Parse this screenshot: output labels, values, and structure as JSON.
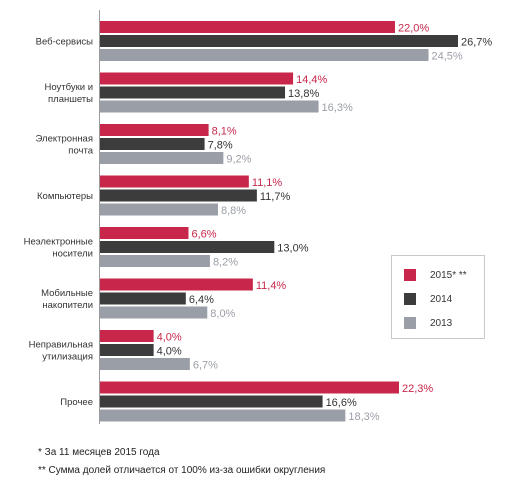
{
  "chart_data": {
    "type": "bar",
    "orientation": "horizontal",
    "categories": [
      [
        "Веб-сервисы"
      ],
      [
        "Ноутбуки и",
        "планшеты"
      ],
      [
        "Электронная",
        "почта"
      ],
      [
        "Компьютеры"
      ],
      [
        "Неэлектронные",
        "носители"
      ],
      [
        "Мобильные",
        "накопители"
      ],
      [
        "Неправильная",
        "утилизация"
      ],
      [
        "Прочее"
      ]
    ],
    "series": [
      {
        "name": "2015* **",
        "color": "#c8264a",
        "values": [
          22.0,
          14.4,
          8.1,
          11.1,
          6.6,
          11.4,
          4.0,
          22.3
        ],
        "labels": [
          "22,0%",
          "14,4%",
          "8,1%",
          "11,1%",
          "6,6%",
          "11,4%",
          "4,0%",
          "22,3%"
        ]
      },
      {
        "name": "2014",
        "color": "#3c3c3c",
        "values": [
          26.7,
          13.8,
          7.8,
          11.7,
          13.0,
          6.4,
          4.0,
          16.6
        ],
        "labels": [
          "26,7%",
          "13,8%",
          "7,8%",
          "11,7%",
          "13,0%",
          "6,4%",
          "4,0%",
          "16,6%"
        ]
      },
      {
        "name": "2013",
        "color": "#9a9ea6",
        "values": [
          24.5,
          16.3,
          9.2,
          8.8,
          8.2,
          8.0,
          6.7,
          18.3
        ],
        "labels": [
          "24,5%",
          "16,3%",
          "9,2%",
          "8,8%",
          "8,2%",
          "8,0%",
          "6,7%",
          "18,3%"
        ]
      }
    ],
    "xlim": [
      0,
      26.7
    ],
    "grid": false,
    "legend_position": "right"
  },
  "footnotes": {
    "note1": "* За 11 месяцев 2015 года",
    "note2": "** Сумма долей отличается от 100% из-за ошибки округления"
  }
}
